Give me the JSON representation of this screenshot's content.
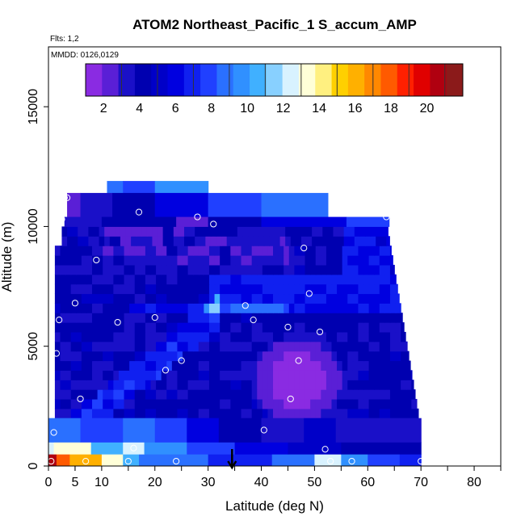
{
  "chart_data": {
    "type": "heatmap",
    "title": "ATOM2 Northeast_Pacific_1 S_accum_AMP",
    "annotations": {
      "flights": "Flts: 1,2",
      "dates": "MMDD: 0126,0129"
    },
    "xlabel": "Latitude (deg N)",
    "ylabel": "Altitude (m)",
    "xlim": [
      0,
      85
    ],
    "ylim": [
      0,
      17500
    ],
    "x_ticks": [
      0,
      5,
      10,
      20,
      30,
      40,
      50,
      60,
      70,
      80
    ],
    "y_ticks": [
      0,
      5000,
      10000,
      15000
    ],
    "grid": false,
    "colorbar": {
      "placement": "top-inside",
      "range": [
        1,
        22
      ],
      "tick_values": [
        2,
        4,
        6,
        8,
        10,
        12,
        14,
        16,
        18,
        20
      ],
      "colors": [
        "#8a2be2",
        "#5a1fd6",
        "#1a10c8",
        "#0000b0",
        "#0000c8",
        "#0000e0",
        "#1020f0",
        "#2040ff",
        "#2a70ff",
        "#3090ff",
        "#40b0ff",
        "#88d0ff",
        "#d8f2ff",
        "#ffffd8",
        "#fff080",
        "#ffd000",
        "#ffb000",
        "#ff8800",
        "#ff5a00",
        "#ff2000",
        "#e00000",
        "#b00010",
        "#8b1a1a"
      ],
      "dividers": [
        3,
        5,
        7,
        9,
        11,
        13,
        15,
        17,
        19,
        21
      ]
    },
    "surface_layers": [
      {
        "alt_min": 0,
        "alt_max": 500,
        "segments": [
          [
            0,
            1.5,
            21
          ],
          [
            1.5,
            4,
            18
          ],
          [
            4,
            10,
            16
          ],
          [
            10,
            14,
            13
          ],
          [
            14,
            17,
            11
          ],
          [
            17,
            30,
            9
          ],
          [
            30,
            42,
            7
          ],
          [
            42,
            50,
            9
          ],
          [
            50,
            55,
            12
          ],
          [
            55,
            60,
            10
          ],
          [
            60,
            66,
            8
          ],
          [
            66,
            70,
            7
          ]
        ]
      },
      {
        "alt_min": 500,
        "alt_max": 1000,
        "segments": [
          [
            0,
            1,
            12
          ],
          [
            1,
            8,
            13
          ],
          [
            8,
            14,
            11
          ],
          [
            14,
            18,
            12
          ],
          [
            18,
            26,
            10
          ],
          [
            26,
            35,
            8
          ],
          [
            35,
            45,
            6
          ],
          [
            45,
            55,
            5
          ],
          [
            55,
            70,
            4
          ]
        ]
      },
      {
        "alt_min": 1000,
        "alt_max": 2000,
        "segments": [
          [
            0,
            6,
            9
          ],
          [
            6,
            14,
            8
          ],
          [
            14,
            20,
            9
          ],
          [
            20,
            26,
            8
          ],
          [
            26,
            32,
            6
          ],
          [
            32,
            40,
            4
          ],
          [
            40,
            48,
            3
          ],
          [
            48,
            54,
            5
          ],
          [
            54,
            70,
            3
          ]
        ]
      }
    ],
    "upper_layers": [
      {
        "alt_min": 11400,
        "alt_max": 11900,
        "segments": [
          [
            11,
            14,
            9
          ],
          [
            14,
            20,
            8
          ],
          [
            20,
            30,
            10
          ]
        ]
      },
      {
        "alt_min": 10400,
        "alt_max": 11400,
        "segments": [
          [
            3.5,
            6,
            2
          ],
          [
            6,
            12,
            3
          ],
          [
            12,
            20,
            4
          ],
          [
            20,
            30,
            6
          ],
          [
            30,
            40,
            8
          ],
          [
            40,
            52.5,
            9
          ]
        ]
      },
      {
        "alt_min": 10000,
        "alt_max": 10400,
        "segments": [
          [
            3,
            10,
            3
          ],
          [
            10,
            24,
            4
          ],
          [
            24,
            30,
            2
          ],
          [
            30,
            40,
            4
          ],
          [
            40,
            56,
            6
          ],
          [
            56,
            64,
            8
          ]
        ]
      }
    ],
    "series": [
      {
        "name": "flight_track_points",
        "x": [
          0.5,
          1,
          1.5,
          2,
          2.5,
          3,
          3.5,
          5,
          6,
          7,
          9,
          13,
          15,
          16,
          17,
          20,
          22,
          24,
          25,
          28,
          31,
          37,
          38.5,
          40.5,
          45,
          45.5,
          47,
          48,
          49,
          51,
          52,
          53,
          57,
          63.5,
          70
        ],
        "y": [
          200,
          1400,
          4700,
          6100,
          10300,
          11200,
          11200,
          6800,
          2800,
          200,
          8600,
          6000,
          200,
          750,
          10600,
          6200,
          4000,
          200,
          4400,
          10400,
          10100,
          6700,
          6100,
          1500,
          5800,
          2800,
          4400,
          9100,
          7200,
          5600,
          700,
          200,
          200,
          10400,
          200
        ]
      }
    ],
    "marker": {
      "type": "arrow-down",
      "x": 34.5
    }
  }
}
